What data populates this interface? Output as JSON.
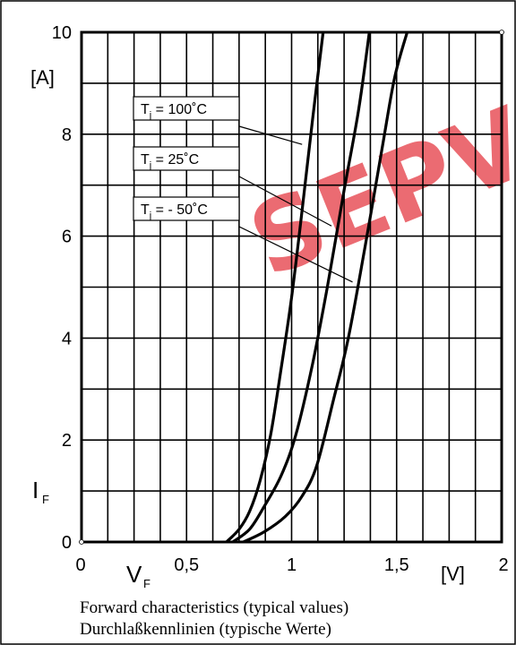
{
  "chart_data": {
    "type": "line",
    "xlim": [
      0,
      2
    ],
    "ylim": [
      0,
      10
    ],
    "x_ticks": [
      "0",
      "0,5",
      "1",
      "1,5",
      "2"
    ],
    "y_ticks": [
      "0",
      "2",
      "4",
      "6",
      "8",
      "10"
    ],
    "x_unit": "[V]",
    "y_unit": "[A]",
    "xlabel": {
      "main": "V",
      "sub": "F"
    },
    "ylabel": {
      "main": "I",
      "sub": "F"
    },
    "grid": true,
    "series": [
      {
        "name": "T_j = 100°C",
        "points": [
          [
            0.69,
            0
          ],
          [
            0.75,
            0.25
          ],
          [
            0.8,
            0.6
          ],
          [
            0.85,
            1.2
          ],
          [
            0.9,
            2.1
          ],
          [
            0.95,
            3.4
          ],
          [
            1.0,
            4.8
          ],
          [
            1.05,
            6.5
          ],
          [
            1.1,
            8.3
          ],
          [
            1.15,
            10
          ]
        ]
      },
      {
        "name": "T_j = 25°C",
        "points": [
          [
            0.72,
            0
          ],
          [
            0.8,
            0.25
          ],
          [
            0.87,
            0.7
          ],
          [
            0.95,
            1.3
          ],
          [
            1.02,
            2.1
          ],
          [
            1.1,
            3.5
          ],
          [
            1.17,
            5.0
          ],
          [
            1.25,
            6.9
          ],
          [
            1.32,
            8.5
          ],
          [
            1.37,
            10
          ]
        ]
      },
      {
        "name": "T_j = - 50°C",
        "points": [
          [
            0.77,
            0
          ],
          [
            0.87,
            0.2
          ],
          [
            0.97,
            0.5
          ],
          [
            1.05,
            0.9
          ],
          [
            1.12,
            1.5
          ],
          [
            1.2,
            2.8
          ],
          [
            1.27,
            4.0
          ],
          [
            1.35,
            5.8
          ],
          [
            1.43,
            7.7
          ],
          [
            1.49,
            9.1
          ],
          [
            1.55,
            10
          ]
        ]
      }
    ],
    "legend": [
      {
        "base": "T",
        "sub": "j",
        "rest": " = 100˚C"
      },
      {
        "base": "T",
        "sub": "j",
        "rest": " = 25˚C"
      },
      {
        "base": "T",
        "sub": "j",
        "rest": " = - 50˚C"
      }
    ]
  },
  "caption": {
    "line1": "Forward characteristics (typical values)",
    "line2": "Durchlaßkennlinien (typische Werte)"
  },
  "watermark": {
    "text": "SEPV",
    "color": "#e8525a"
  }
}
